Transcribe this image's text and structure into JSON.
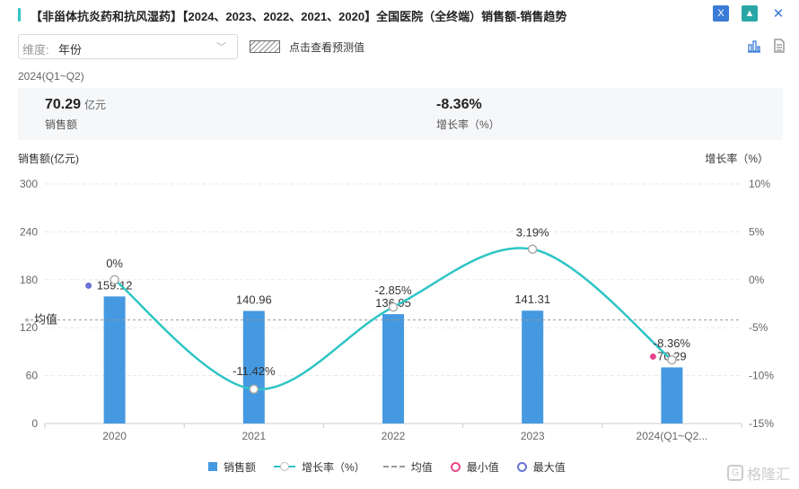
{
  "title": "【非甾体抗炎药和抗风湿药】【2024、2023、2022、2021、2020】全国医院（全终端）销售额-销售趋势",
  "icons": {
    "excel": "excel-export-icon",
    "image": "image-export-icon",
    "close": "close-icon"
  },
  "toolbar": {
    "dimension_label": "维度:",
    "dimension_value": "年份",
    "forecast_label": "点击查看预测值",
    "bar_view_icon": "bar-chart-icon",
    "table_view_icon": "table-view-icon"
  },
  "period": "2024(Q1~Q2)",
  "summary": {
    "sales_value": "70.29",
    "sales_unit": "亿元",
    "sales_label": "销售额",
    "growth_value": "-8.36%",
    "growth_label": "增长率（%）"
  },
  "colors": {
    "bar": "#4599e0",
    "line": "#2ec4c4",
    "min": "#e8458b",
    "max": "#6b74d6",
    "mean": "#999999"
  },
  "chart_data": {
    "type": "bar",
    "categories": [
      "2020",
      "2021",
      "2022",
      "2023",
      "2024(Q1~Q2..."
    ],
    "series": [
      {
        "name": "销售额",
        "type": "bar",
        "axis": "left",
        "values": [
          159.12,
          140.96,
          136.95,
          141.31,
          70.29
        ],
        "labels": [
          "159.12",
          "140.96",
          "136.95",
          "141.31",
          "70.29"
        ]
      },
      {
        "name": "增长率（%）",
        "type": "line",
        "axis": "right",
        "values": [
          0,
          -11.42,
          -2.85,
          3.19,
          -8.36
        ],
        "labels": [
          "0%",
          "-11.42%",
          "-2.85%",
          "3.19%",
          "-8.36%"
        ]
      }
    ],
    "ylabel_left": "销售额(亿元)",
    "ylabel_right": "增长率（%）",
    "ylim_left": [
      0,
      300
    ],
    "yticks_left": [
      "0",
      "60",
      "120",
      "180",
      "240",
      "300"
    ],
    "ylim_right": [
      -15,
      10
    ],
    "yticks_right": [
      "-15%",
      "-10%",
      "-5%",
      "0%",
      "5%",
      "10%"
    ],
    "mean_label": "均值",
    "mean_value": 129.7,
    "min_index": 4,
    "max_index": 0,
    "legend": [
      "销售额",
      "增长率（%）",
      "均值",
      "最小值",
      "最大值"
    ],
    "legend_position": "bottom",
    "grid": true
  },
  "watermark": "格隆汇"
}
